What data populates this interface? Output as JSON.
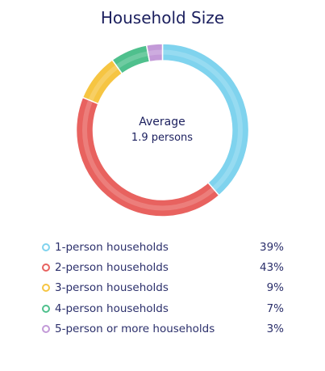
{
  "chart_data": {
    "type": "pie",
    "title": "Household Size",
    "center_label": "Average",
    "center_value": "1.9 persons",
    "categories": [
      "1-person households",
      "2-person households",
      "3-person households",
      "4-person households",
      "5-person or more households"
    ],
    "values": [
      39,
      43,
      9,
      7,
      3
    ],
    "value_labels": [
      "39%",
      "43%",
      "9%",
      "7%",
      "3%"
    ],
    "colors": [
      "#7fd3ee",
      "#e8625f",
      "#f6c542",
      "#4fc08d",
      "#c39ad8"
    ],
    "legend_position": "bottom"
  }
}
